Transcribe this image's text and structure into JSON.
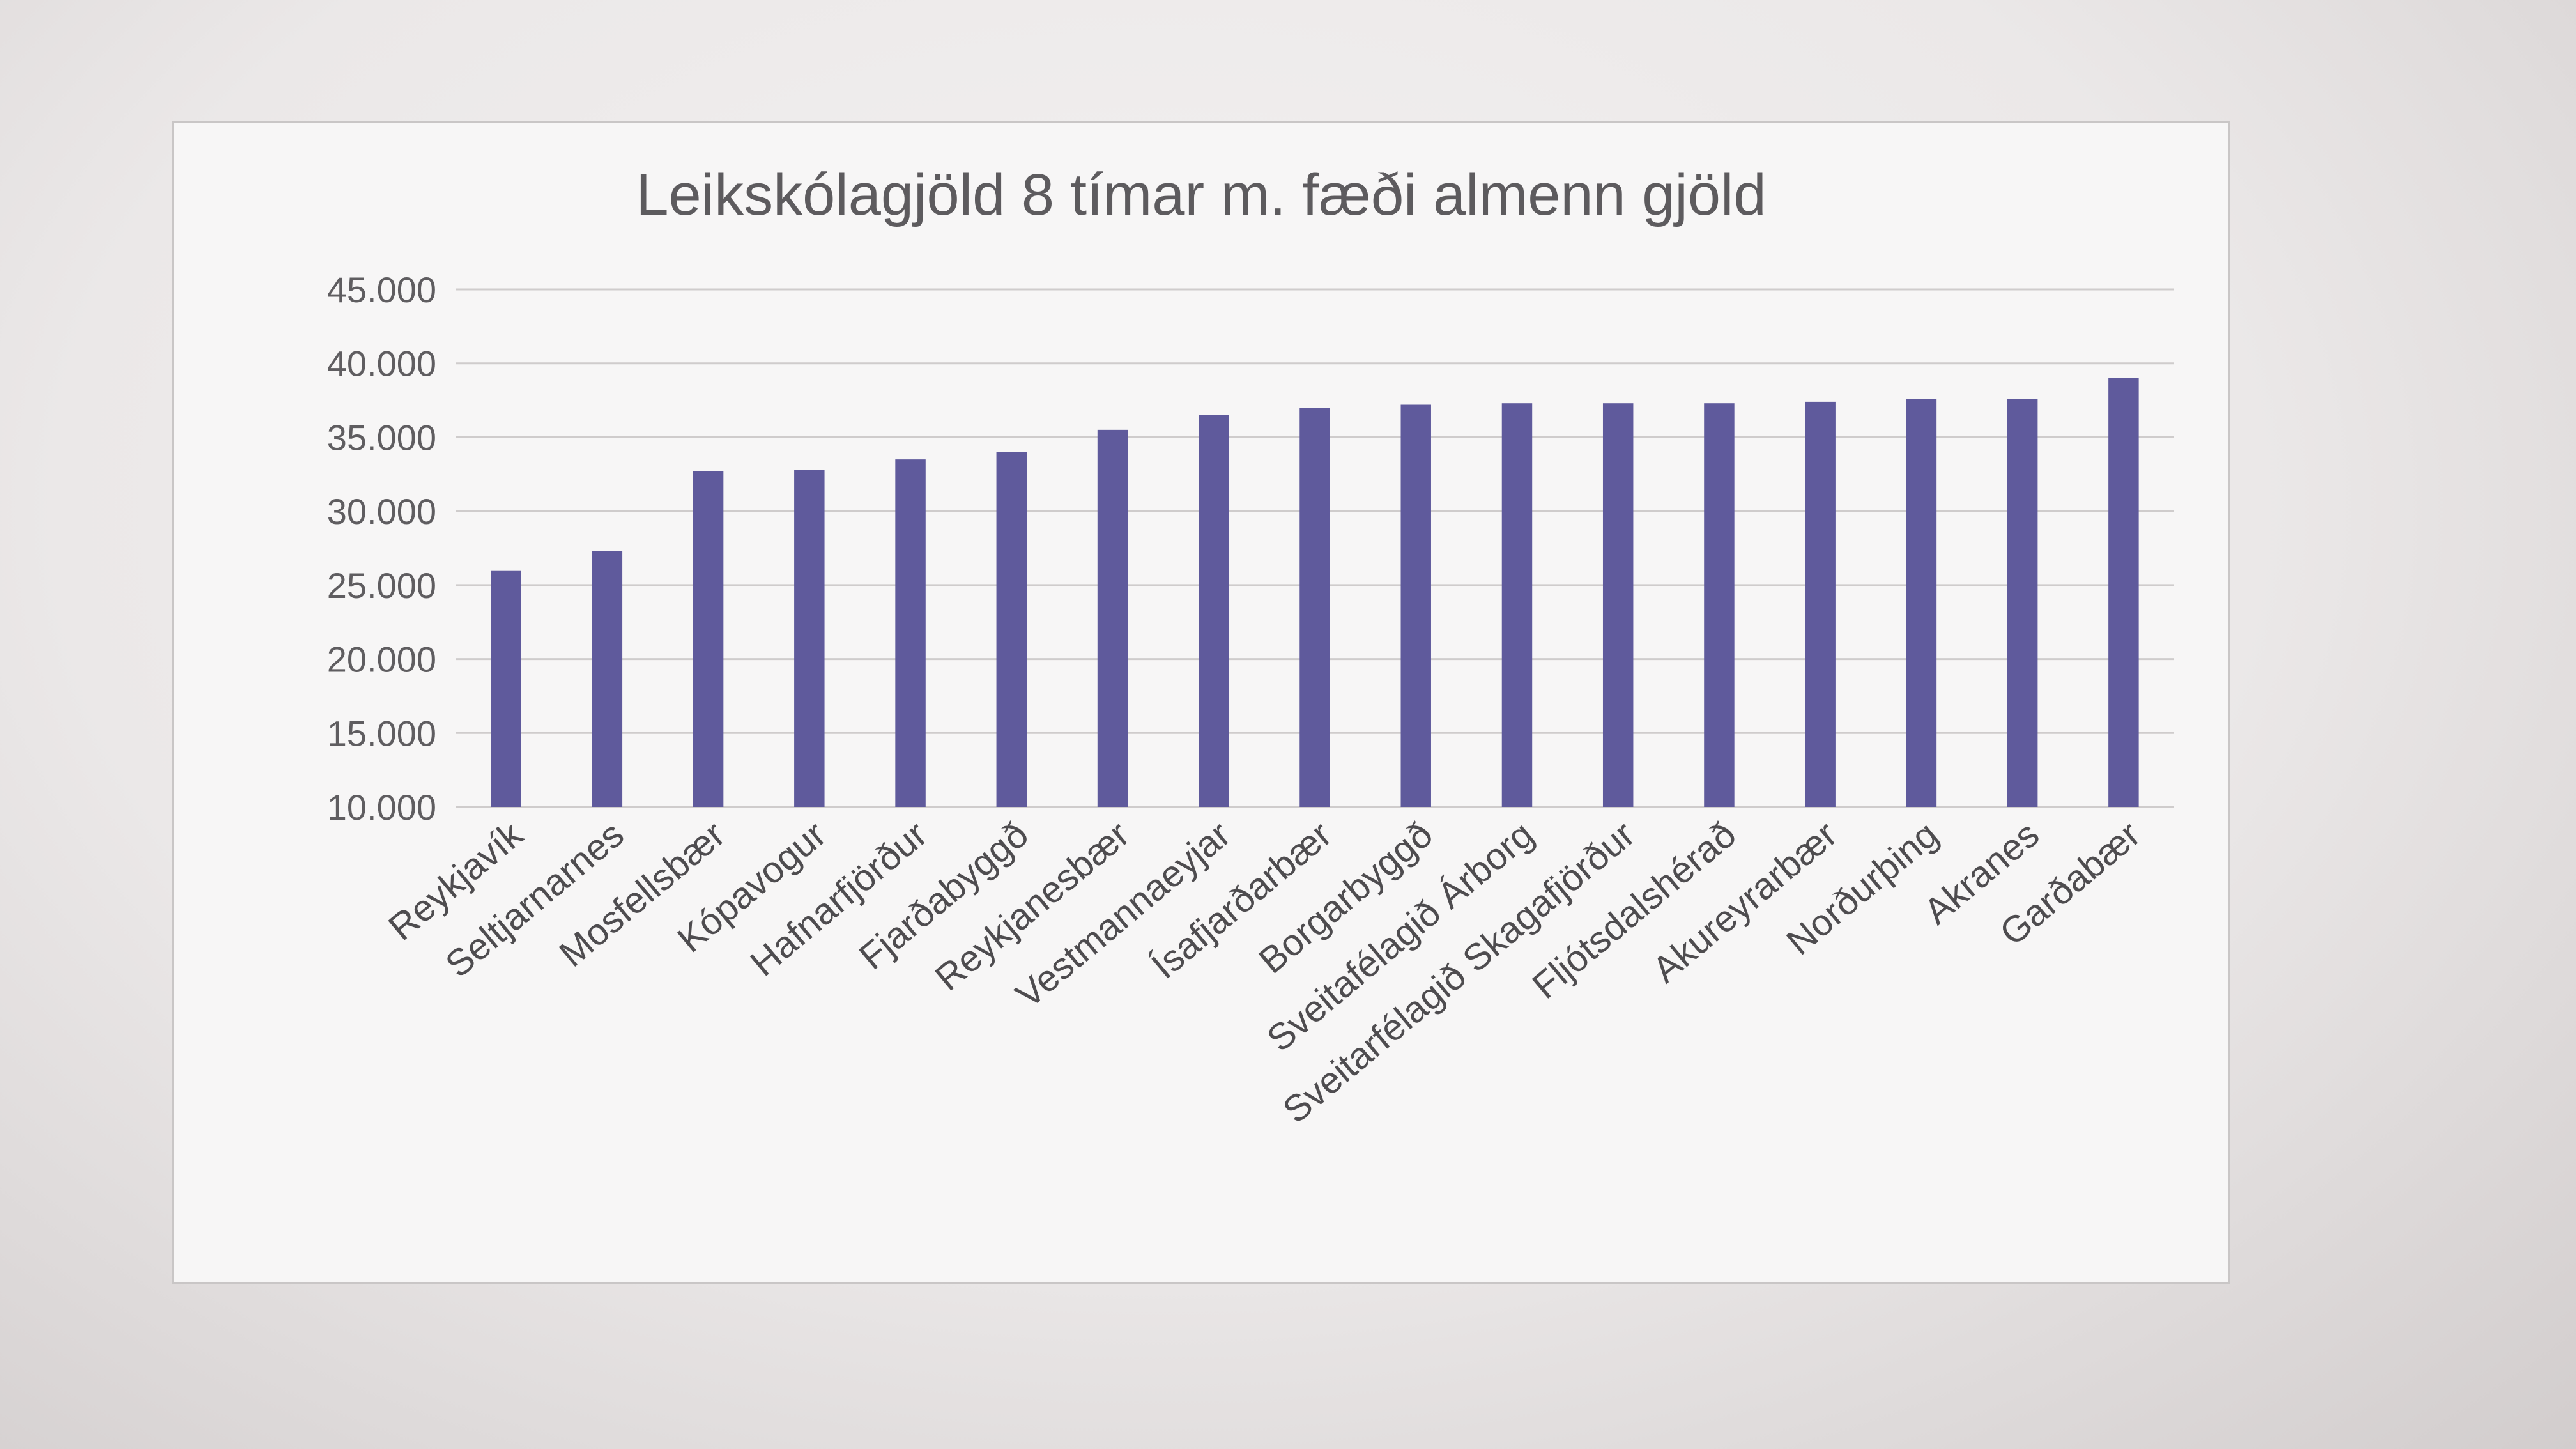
{
  "chart_data": {
    "type": "bar",
    "title": "Leikskólagjöld 8 tímar m. fæði almenn gjöld",
    "xlabel": "",
    "ylabel": "",
    "ylim": [
      10000,
      45000
    ],
    "yticks": [
      10000,
      15000,
      20000,
      25000,
      30000,
      35000,
      40000,
      45000
    ],
    "ytick_labels": [
      "10.000",
      "15.000",
      "20.000",
      "25.000",
      "30.000",
      "35.000",
      "40.000",
      "45.000"
    ],
    "grid": true,
    "legend": "none",
    "bar_color": "#5f5a9c",
    "grid_color": "#cfcccc",
    "categories": [
      "Reykjavík",
      "Seltjarnarnes",
      "Mosfellsbær",
      "Kópavogur",
      "Hafnarfjörður",
      "Fjarðabyggð",
      "Reykjanesbær",
      "Vestmannaeyjar",
      "Ísafjarðarbær",
      "Borgarbyggð",
      "Sveitafélagið Árborg",
      "Sveitarfélagið Skagafjörður",
      "Fljótsdalshérað",
      "Akureyrarbær",
      "Norðurþing",
      "Akranes",
      "Garðabær"
    ],
    "values": [
      26000,
      27300,
      32700,
      32800,
      33500,
      34000,
      35500,
      36500,
      37000,
      37200,
      37300,
      37300,
      37300,
      37400,
      37600,
      37600,
      39000
    ]
  }
}
